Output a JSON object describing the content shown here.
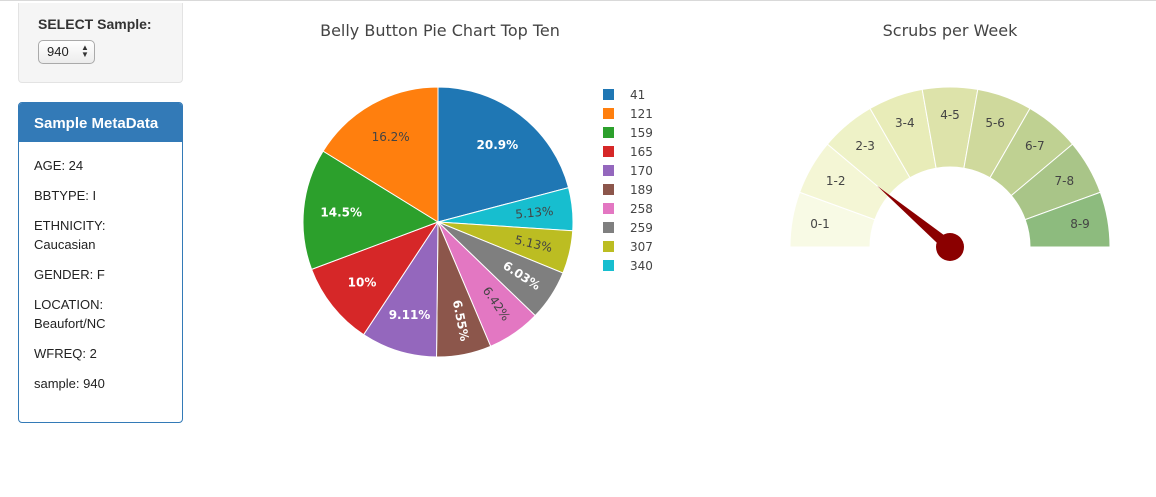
{
  "selector": {
    "label": "SELECT Sample:",
    "value": "940"
  },
  "metadata": {
    "title": "Sample MetaData",
    "items": [
      "AGE: 24",
      "BBTYPE: I",
      "ETHNICITY: Caucasian",
      "GENDER: F",
      "LOCATION: Beaufort/NC",
      "WFREQ: 2",
      "sample: 940"
    ]
  },
  "chart_data": [
    {
      "type": "pie",
      "title": "Belly Button Pie Chart Top Ten",
      "legend_position": "right",
      "slices": [
        {
          "label": "41",
          "percent": 20.9,
          "text": "20.9%",
          "color": "#1f77b4"
        },
        {
          "label": "340",
          "percent": 5.13,
          "text": "5.13%",
          "color": "#17becf"
        },
        {
          "label": "307",
          "percent": 5.13,
          "text": "5.13%",
          "color": "#bcbd22"
        },
        {
          "label": "259",
          "percent": 6.03,
          "text": "6.03%",
          "color": "#7f7f7f"
        },
        {
          "label": "258",
          "percent": 6.42,
          "text": "6.42%",
          "color": "#e377c2"
        },
        {
          "label": "189",
          "percent": 6.55,
          "text": "6.55%",
          "color": "#8c564b"
        },
        {
          "label": "170",
          "percent": 9.11,
          "text": "9.11%",
          "color": "#9467bd"
        },
        {
          "label": "165",
          "percent": 10.0,
          "text": "10%",
          "color": "#d62728"
        },
        {
          "label": "159",
          "percent": 14.5,
          "text": "14.5%",
          "color": "#2ca02c"
        },
        {
          "label": "121",
          "percent": 16.2,
          "text": "16.2%",
          "color": "#ff7f0e"
        }
      ],
      "legend": [
        {
          "label": "41",
          "color": "#1f77b4"
        },
        {
          "label": "121",
          "color": "#ff7f0e"
        },
        {
          "label": "159",
          "color": "#2ca02c"
        },
        {
          "label": "165",
          "color": "#d62728"
        },
        {
          "label": "170",
          "color": "#9467bd"
        },
        {
          "label": "189",
          "color": "#8c564b"
        },
        {
          "label": "258",
          "color": "#e377c2"
        },
        {
          "label": "259",
          "color": "#7f7f7f"
        },
        {
          "label": "307",
          "color": "#bcbd22"
        },
        {
          "label": "340",
          "color": "#17becf"
        }
      ]
    },
    {
      "type": "gauge",
      "title": "Scrubs per Week",
      "value": 2,
      "range": [
        0,
        9
      ],
      "needle_color": "#8b0000",
      "segments": [
        {
          "label": "0-1",
          "color": "#f8fae5"
        },
        {
          "label": "1-2",
          "color": "#f4f6d5"
        },
        {
          "label": "2-3",
          "color": "#eef2c7"
        },
        {
          "label": "3-4",
          "color": "#e8ecb8"
        },
        {
          "label": "4-5",
          "color": "#dde3aa"
        },
        {
          "label": "5-6",
          "color": "#cfd99c"
        },
        {
          "label": "6-7",
          "color": "#bfd192"
        },
        {
          "label": "7-8",
          "color": "#a9c588"
        },
        {
          "label": "8-9",
          "color": "#8dbb7e"
        }
      ]
    }
  ]
}
